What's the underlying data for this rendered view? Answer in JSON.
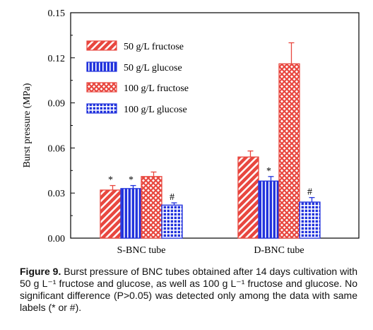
{
  "chart_data": {
    "type": "bar",
    "ylabel": "Burst pressure (MPa)",
    "xlabel": "",
    "ylim": [
      0,
      0.15
    ],
    "yticks": [
      "0.00",
      "0.03",
      "0.06",
      "0.09",
      "0.12",
      "0.15"
    ],
    "categories": [
      "S-BNC tube",
      "D-BNC tube"
    ],
    "legend_position": "top-left",
    "series": [
      {
        "name": "50 g/L fructose",
        "values": [
          0.032,
          0.054
        ],
        "errors": [
          0.003,
          0.004
        ],
        "marks": [
          "*",
          ""
        ],
        "color": "#e8473f",
        "pattern": "diagonal"
      },
      {
        "name": "50 g/L glucose",
        "values": [
          0.033,
          0.038
        ],
        "errors": [
          0.002,
          0.003
        ],
        "marks": [
          "*",
          "*"
        ],
        "color": "#2233dd",
        "pattern": "vertical"
      },
      {
        "name": "100 g/L fructose",
        "values": [
          0.041,
          0.116
        ],
        "errors": [
          0.003,
          0.014
        ],
        "marks": [
          "",
          ""
        ],
        "color": "#e8473f",
        "pattern": "crosshatch"
      },
      {
        "name": "100 g/L glucose",
        "values": [
          0.022,
          0.024
        ],
        "errors": [
          0.0015,
          0.003
        ],
        "marks": [
          "#",
          "#"
        ],
        "color": "#2233dd",
        "pattern": "grid"
      }
    ]
  },
  "caption": {
    "label": "Figure 9.",
    "text": " Burst pressure of BNC tubes obtained after 14 days cultivation with 50 g L⁻¹ fructose and glucose, as well as 100 g L⁻¹ fructose and glucose. No significant difference (P>0.05) was detected only among the data with same labels (* or #)."
  }
}
